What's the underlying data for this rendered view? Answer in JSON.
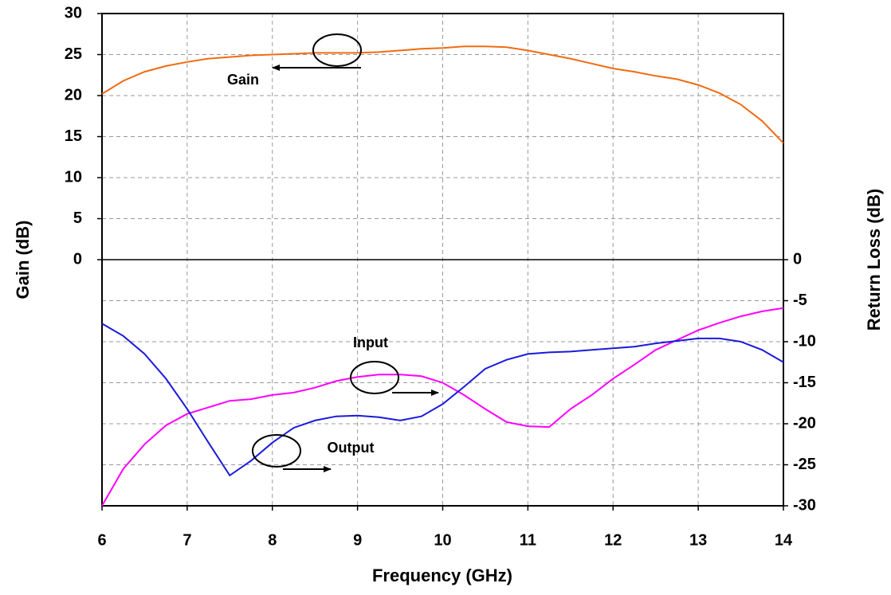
{
  "chart_data": {
    "type": "line",
    "x_label": "Frequency (GHz)",
    "y_label": "Gain (dB)",
    "y2_label": "Return Loss (dB)",
    "x": [
      6,
      6.25,
      6.5,
      6.75,
      7,
      7.25,
      7.5,
      7.75,
      8,
      8.25,
      8.5,
      8.75,
      9,
      9.25,
      9.5,
      9.75,
      10,
      10.25,
      10.5,
      10.75,
      11,
      11.25,
      11.5,
      11.75,
      12,
      12.25,
      12.5,
      12.75,
      13,
      13.25,
      13.5,
      13.75,
      14
    ],
    "series": [
      {
        "name": "Gain",
        "color": "#f26b10",
        "axis": "y",
        "values": [
          20.2,
          21.8,
          22.9,
          23.6,
          24.1,
          24.5,
          24.7,
          24.9,
          25.0,
          25.1,
          25.2,
          25.2,
          25.2,
          25.3,
          25.5,
          25.7,
          25.8,
          26.0,
          26.0,
          25.9,
          25.5,
          25.0,
          24.5,
          23.9,
          23.3,
          22.9,
          22.4,
          22.0,
          21.3,
          20.3,
          18.9,
          16.9,
          14.2
        ]
      },
      {
        "name": "Input",
        "color": "#ff00ff",
        "axis": "y2",
        "values": [
          -30,
          -25.5,
          -22.5,
          -20.2,
          -18.8,
          -18.0,
          -17.2,
          -17.0,
          -16.5,
          -16.2,
          -15.6,
          -14.8,
          -14.3,
          -14.0,
          -14.0,
          -14.2,
          -15.0,
          -16.5,
          -18.2,
          -19.8,
          -20.3,
          -20.4,
          -18.2,
          -16.5,
          -14.5,
          -12.8,
          -11.0,
          -9.8,
          -8.6,
          -7.7,
          -6.9,
          -6.3,
          -5.9
        ]
      },
      {
        "name": "Output",
        "color": "#1a1adc",
        "axis": "y2",
        "values": [
          -7.8,
          -9.3,
          -11.5,
          -14.5,
          -18.2,
          -22.3,
          -26.3,
          -24.5,
          -22.3,
          -20.5,
          -19.6,
          -19.1,
          -19.0,
          -19.2,
          -19.6,
          -19.1,
          -17.6,
          -15.5,
          -13.3,
          -12.2,
          -11.5,
          -11.3,
          -11.2,
          -11.0,
          -10.8,
          -10.6,
          -10.2,
          -9.9,
          -9.6,
          -9.6,
          -10.0,
          -11.0,
          -12.5
        ]
      }
    ],
    "xlim": [
      6,
      14
    ],
    "xticks": [
      6,
      7,
      8,
      9,
      10,
      11,
      12,
      13,
      14
    ],
    "ylim": [
      -30,
      30
    ],
    "yticks": [
      0,
      5,
      10,
      15,
      20,
      25,
      30
    ],
    "y2lim": [
      -30,
      30
    ],
    "y2ticks": [
      -30,
      -25,
      -20,
      -15,
      -10,
      -5,
      0
    ],
    "grid": true,
    "annotations": [
      "Gain",
      "Input",
      "Output"
    ]
  }
}
